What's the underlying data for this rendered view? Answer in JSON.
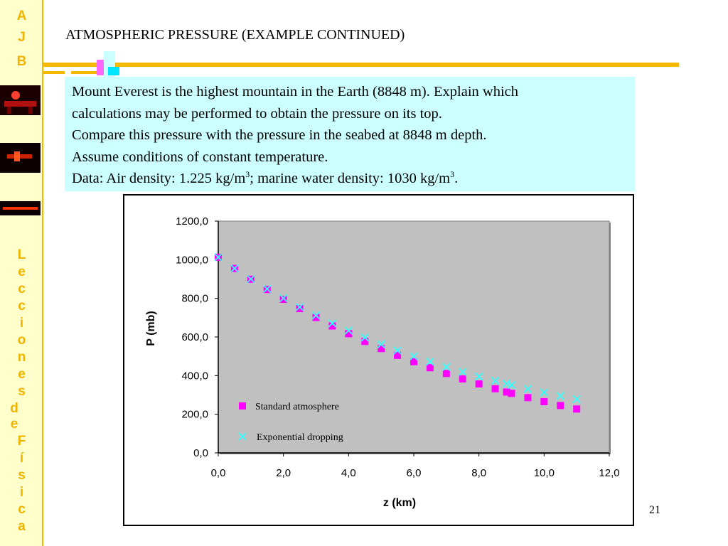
{
  "slide": {
    "title": "ATMOSPHERIC PRESSURE (EXAMPLE CONTINUED)",
    "number": "21",
    "sidebar_top": [
      "A",
      "J",
      "B"
    ],
    "sidebar_bottom": [
      "L",
      "e",
      "c",
      "c",
      "i",
      "o",
      "n",
      "e",
      "s"
    ],
    "sidebar_de": [
      "d",
      "e"
    ],
    "sidebar_fisica": [
      "F",
      "í",
      "s",
      "i",
      "c",
      "a"
    ]
  },
  "problem": {
    "line1": "Mount Everest is the highest mountain in the Earth (8848 m). Explain which",
    "line2": "calculations may be performed to obtain the pressure on its top.",
    "line3": "Compare this pressure with the pressure in the seabed at 8848 m depth.",
    "line4": "Assume conditions of constant temperature.",
    "line5_a": "Data: Air density: 1.225 kg/m",
    "line5_sup1": "3",
    "line5_b": "; marine water density: 1030 kg/m",
    "line5_sup2": "3",
    "line5_c": "."
  },
  "colors": {
    "accent": "#F5B800",
    "sidebar_bg": "#FFFFCC",
    "textbox_bg": "#CCFFFF",
    "plot_bg": "#C0C0C0",
    "standard_series": "#FF00FF",
    "exponential_series": "#33FFFF"
  },
  "chart_data": {
    "type": "scatter",
    "title": "",
    "xlabel": "z (km)",
    "ylabel": "P (mb)",
    "xlim": [
      0,
      12
    ],
    "ylim": [
      0,
      1200
    ],
    "x_ticks": [
      "0,0",
      "2,0",
      "4,0",
      "6,0",
      "8,0",
      "10,0",
      "12,0"
    ],
    "y_ticks": [
      "0,0",
      "200,0",
      "400,0",
      "600,0",
      "800,0",
      "1000,0",
      "1200,0"
    ],
    "grid": false,
    "legend_position": "bottom-left inside plot",
    "series": [
      {
        "name": "Standard atmosphere",
        "marker": "square",
        "x": [
          0,
          0.5,
          1,
          1.5,
          2,
          2.5,
          3,
          3.5,
          4,
          4.5,
          5,
          5.5,
          6,
          6.5,
          7,
          7.5,
          8,
          8.5,
          8.848,
          9,
          9.5,
          10,
          10.5,
          11
        ],
        "y": [
          1013,
          955,
          899,
          846,
          795,
          747,
          701,
          657,
          617,
          577,
          540,
          505,
          472,
          441,
          411,
          383,
          357,
          332,
          315,
          308,
          286,
          265,
          245,
          227
        ]
      },
      {
        "name": "Exponential dropping",
        "marker": "x",
        "x": [
          0,
          0.5,
          1,
          1.5,
          2,
          2.5,
          3,
          3.5,
          4,
          4.5,
          5,
          5.5,
          6,
          6.5,
          7,
          7.5,
          8,
          8.5,
          8.848,
          9,
          9.5,
          10,
          10.5,
          11
        ],
        "y": [
          1013,
          955,
          900,
          849,
          801,
          755,
          712,
          671,
          633,
          597,
          562,
          530,
          500,
          472,
          445,
          419,
          395,
          373,
          358,
          351,
          331,
          313,
          295,
          278
        ]
      }
    ]
  }
}
